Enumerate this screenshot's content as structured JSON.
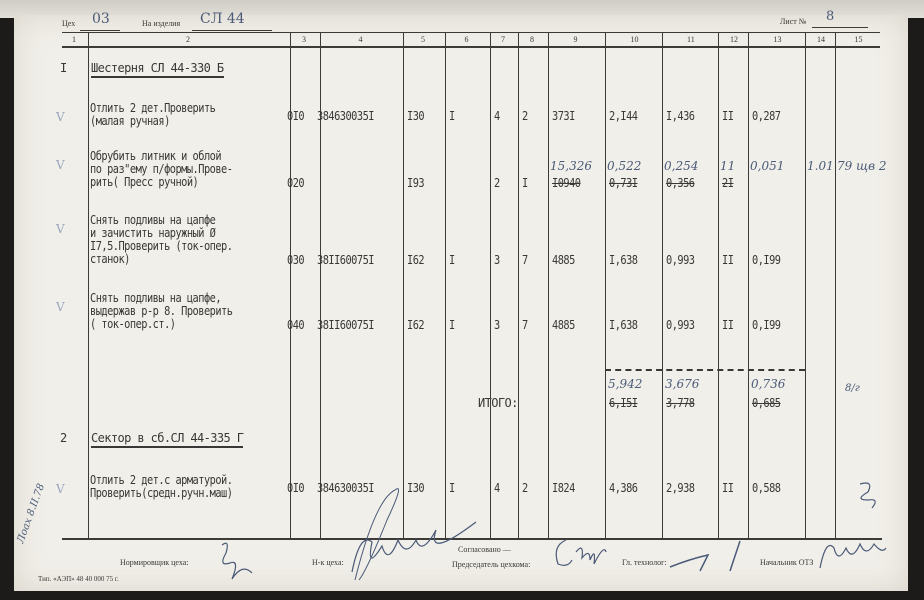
{
  "header": {
    "shop_label": "Цех",
    "shop_value": "03",
    "product_label": "На изделия",
    "product_value": "СЛ 44",
    "sheet_label": "Лист №",
    "sheet_value": "8"
  },
  "column_numbers": [
    "1",
    "2",
    "3",
    "4",
    "5",
    "6",
    "7",
    "8",
    "9",
    "10",
    "11",
    "12",
    "13",
    "14",
    "15"
  ],
  "sections": [
    {
      "number": "I",
      "title": "Шестерня СЛ 44-330 Б"
    },
    {
      "number": "2",
      "title": "Сектор в сб.СЛ 44-335 Г"
    }
  ],
  "operations": [
    {
      "lines": [
        "Отлить 2 дет.Проверить",
        "(малая ручная)"
      ],
      "op": "0I0",
      "code": "384630035I",
      "c5": "I30",
      "c6": "I",
      "c7": "4",
      "c8": "2",
      "c9": "373I",
      "c10": "2,I44",
      "c11": "I,436",
      "c12": "II",
      "c13": "0,287",
      "check": "V"
    },
    {
      "lines": [
        "Обрубить литник и облой",
        "по раз\"ему п/формы.Прове-",
        "рить( Пресс ручной)"
      ],
      "op": "020",
      "code": "",
      "c5": "I93",
      "c6": "",
      "c7": "2",
      "c8": "I",
      "c9": "I0940",
      "c10": "0,73I",
      "c11": "0,356",
      "c12": "2I",
      "c13": "",
      "check": "V",
      "handwritten": {
        "c9": "15,326",
        "c10": "0,522",
        "c11": "0,254",
        "c12": "11",
        "c13": "0,051",
        "c14": "1.01",
        "c15": "79 щв 2"
      }
    },
    {
      "lines": [
        "Снять подливы на цапфе",
        "и зачистить наружный Ø",
        "I7,5.Проверить (ток-опер.",
        "станок)"
      ],
      "op": "030",
      "code": "38II60075I",
      "c5": "I62",
      "c6": "I",
      "c7": "3",
      "c8": "7",
      "c9": "4885",
      "c10": "I,638",
      "c11": "0,993",
      "c12": "II",
      "c13": "0,I99",
      "check": "V"
    },
    {
      "lines": [
        "Снять подливы на цапфе,",
        "выдержав р-р 8. Проверить",
        "( ток-опер.ст.)"
      ],
      "op": "040",
      "code": "38II60075I",
      "c5": "I62",
      "c6": "I",
      "c7": "3",
      "c8": "7",
      "c9": "4885",
      "c10": "I,638",
      "c11": "0,993",
      "c12": "II",
      "c13": "0,I99",
      "check": "V"
    },
    {
      "lines": [
        "Отлить 2 дет.с арматурой.",
        "Проверить(средн.ручн.маш)"
      ],
      "op": "0I0",
      "code": "384630035I",
      "c5": "I30",
      "c6": "I",
      "c7": "4",
      "c8": "2",
      "c9": "I824",
      "c10": "4,386",
      "c11": "2,938",
      "c12": "II",
      "c13": "0,588",
      "check": "V"
    }
  ],
  "total": {
    "label": "ИТОГО:",
    "c10": "6,I5I",
    "c11": "3,778",
    "c13": "0,685",
    "handwritten": {
      "c10": "5,942",
      "c11": "3,676",
      "c13": "0,736",
      "c15": "8/г"
    }
  },
  "margin_note": "Лоах 8.II.78",
  "footer": {
    "normer_label": "Нормировщик цеха:",
    "head_label": "Н-к цеха:",
    "agreed_label": "Согласовано —",
    "chairman_label": "Председатель цехкома:",
    "technologist_label": "Гл. технолог:",
    "otz_label": "Начальник ОТЗ",
    "printer": "Тип. «АЭП» 48 40 000 75 г."
  }
}
